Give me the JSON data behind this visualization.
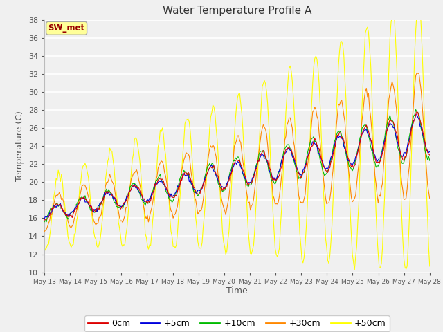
{
  "title": "Water Temperature Profile A",
  "xlabel": "Time",
  "ylabel": "Temperature (C)",
  "ylim": [
    10,
    38
  ],
  "yticks": [
    10,
    12,
    14,
    16,
    18,
    20,
    22,
    24,
    26,
    28,
    30,
    32,
    34,
    36,
    38
  ],
  "figure_bg": "#f0f0f0",
  "plot_bg": "#f0f0f0",
  "series": [
    "0cm",
    "+5cm",
    "+10cm",
    "+30cm",
    "+50cm"
  ],
  "colors": [
    "#dd0000",
    "#0000dd",
    "#00bb00",
    "#ff8800",
    "#ffff00"
  ],
  "legend_label": "SW_met",
  "legend_box_facecolor": "#ffff99",
  "legend_box_edge": "#aaaaaa",
  "start_day": 13,
  "end_day": 28,
  "n_days": 15,
  "samples_per_day": 24
}
